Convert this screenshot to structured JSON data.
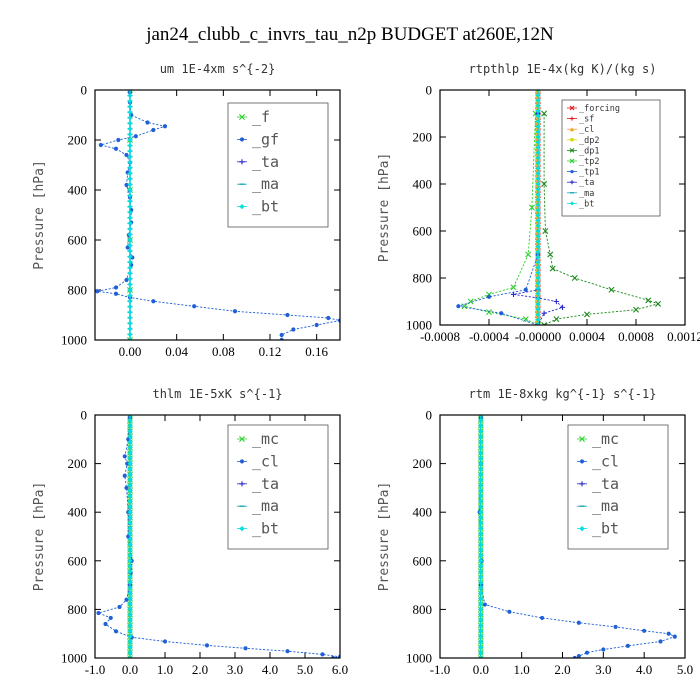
{
  "title": "jan24_clubb_c_invrs_tau_n2p  BUDGET at260E,12N",
  "colors": {
    "green": "#2fcf2f",
    "blue": "#1f5fd8",
    "navy": "#2a2acc",
    "teal": "#1aa6b7",
    "cyan": "#00e0e0",
    "red": "#e01a1a",
    "orange": "#f0a020",
    "yellow": "#d8d800",
    "dkgreen": "#1b8a1b"
  },
  "chart_data": [
    {
      "type": "line",
      "title": "um   1E-4xm s^{-2}",
      "ylabel": "Pressure [hPa]",
      "xlim": [
        -0.03,
        0.18
      ],
      "ylim": [
        0,
        1000
      ],
      "y_inverted": true,
      "xticks": [
        0.0,
        0.04,
        0.08,
        0.12,
        0.16
      ],
      "xtick_labels": [
        "0.00",
        "0.04",
        "0.08",
        "0.12",
        "0.16"
      ],
      "yticks": [
        0,
        200,
        400,
        600,
        800,
        1000
      ],
      "legend_style": "big",
      "series": [
        {
          "name": "_f",
          "color": "green",
          "marker": "x",
          "points": [
            [
              0,
              0
            ],
            [
              0,
              200
            ],
            [
              0,
              400
            ],
            [
              0,
              600
            ],
            [
              0,
              800
            ],
            [
              0,
              1000
            ]
          ]
        },
        {
          "name": "_gf",
          "color": "blue",
          "marker": "dot",
          "points": [
            [
              0,
              10
            ],
            [
              0,
              50
            ],
            [
              0.001,
              100
            ],
            [
              0.015,
              130
            ],
            [
              0.03,
              145
            ],
            [
              0.02,
              160
            ],
            [
              0.005,
              185
            ],
            [
              -0.01,
              200
            ],
            [
              -0.025,
              220
            ],
            [
              -0.012,
              235
            ],
            [
              -0.003,
              260
            ],
            [
              0,
              290
            ],
            [
              -0.002,
              330
            ],
            [
              -0.003,
              380
            ],
            [
              0,
              430
            ],
            [
              0.001,
              480
            ],
            [
              0.001,
              530
            ],
            [
              -0.001,
              580
            ],
            [
              -0.002,
              630
            ],
            [
              0.002,
              670
            ],
            [
              0.001,
              700
            ],
            [
              -0.003,
              760
            ],
            [
              -0.012,
              790
            ],
            [
              -0.028,
              805
            ],
            [
              -0.012,
              815
            ],
            [
              0,
              830
            ],
            [
              0.02,
              845
            ],
            [
              0.055,
              865
            ],
            [
              0.09,
              885
            ],
            [
              0.135,
              900
            ],
            [
              0.17,
              912
            ],
            [
              0.18,
              922
            ],
            [
              0.16,
              940
            ],
            [
              0.14,
              958
            ],
            [
              0.13,
              980
            ],
            [
              0.13,
              1000
            ]
          ]
        },
        {
          "name": "_ta",
          "color": "navy",
          "marker": "plus",
          "points": [
            [
              0,
              0
            ],
            [
              0,
              1000
            ]
          ]
        },
        {
          "name": "_ma",
          "color": "teal",
          "marker": "dash",
          "points": [
            [
              0,
              0
            ],
            [
              0,
              1000
            ]
          ]
        },
        {
          "name": "_bt",
          "color": "cyan",
          "marker": "diamond",
          "points": [
            [
              0,
              0
            ],
            [
              0,
              1000
            ]
          ]
        }
      ]
    },
    {
      "type": "line",
      "title": "rtpthlp   1E-4x(kg K)/(kg s)",
      "ylabel": "Pressure [hPa]",
      "xlim": [
        -0.0008,
        0.0012
      ],
      "ylim": [
        0,
        1000
      ],
      "y_inverted": true,
      "xticks": [
        -0.0008,
        -0.0004,
        0.0,
        0.0004,
        0.0008,
        0.0012
      ],
      "xtick_labels": [
        "-0.0008",
        "-0.0004",
        "-0.00000",
        "0.0004",
        "0.0008",
        "0.0012"
      ],
      "yticks": [
        0,
        200,
        400,
        600,
        800,
        1000
      ],
      "legend_style": "small",
      "series": [
        {
          "name": "_forcing",
          "color": "red",
          "marker": "x",
          "points": [
            [
              0,
              0
            ],
            [
              0,
              1000
            ]
          ]
        },
        {
          "name": "_sf",
          "color": "red",
          "marker": "plus",
          "points": [
            [
              0,
              0
            ],
            [
              0,
              1000
            ]
          ]
        },
        {
          "name": "_cl",
          "color": "orange",
          "marker": "tri",
          "points": [
            [
              0,
              0
            ],
            [
              0,
              1000
            ]
          ]
        },
        {
          "name": "_dp2",
          "color": "yellow",
          "marker": "square",
          "points": [
            [
              0,
              0
            ],
            [
              0,
              1000
            ]
          ]
        },
        {
          "name": "_dp1",
          "color": "dkgreen",
          "marker": "x",
          "points": [
            [
              5e-05,
              100
            ],
            [
              5e-05,
              400
            ],
            [
              6e-05,
              600
            ],
            [
              0.0001,
              700
            ],
            [
              0.00012,
              760
            ],
            [
              0.0003,
              800
            ],
            [
              0.0006,
              850
            ],
            [
              0.0009,
              895
            ],
            [
              0.00098,
              910
            ],
            [
              0.0008,
              935
            ],
            [
              0.0004,
              955
            ],
            [
              0.00015,
              975
            ],
            [
              5e-05,
              1000
            ]
          ]
        },
        {
          "name": "_tp2",
          "color": "green",
          "marker": "x",
          "points": [
            [
              -2e-05,
              100
            ],
            [
              -5e-05,
              500
            ],
            [
              -8e-05,
              700
            ],
            [
              -0.0002,
              840
            ],
            [
              -0.0004,
              870
            ],
            [
              -0.00055,
              900
            ],
            [
              -0.0006,
              920
            ],
            [
              -0.0004,
              945
            ],
            [
              -0.0001,
              975
            ],
            [
              0,
              1000
            ]
          ]
        },
        {
          "name": "_tp1",
          "color": "blue",
          "marker": "dot",
          "points": [
            [
              0,
              100
            ],
            [
              0,
              700
            ],
            [
              -0.0001,
              850
            ],
            [
              -0.0004,
              880
            ],
            [
              -0.00065,
              920
            ],
            [
              -0.0003,
              950
            ],
            [
              0,
              1000
            ]
          ]
        },
        {
          "name": "_ta",
          "color": "navy",
          "marker": "plus",
          "points": [
            [
              0,
              100
            ],
            [
              0,
              850
            ],
            [
              -0.0002,
              870
            ],
            [
              0,
              885
            ],
            [
              0.00015,
              900
            ],
            [
              0.0002,
              925
            ],
            [
              5e-05,
              950
            ],
            [
              0,
              1000
            ]
          ]
        },
        {
          "name": "_ma",
          "color": "teal",
          "marker": "dash",
          "points": [
            [
              0,
              0
            ],
            [
              0,
              1000
            ]
          ]
        },
        {
          "name": "_bt",
          "color": "cyan",
          "marker": "diamond",
          "points": [
            [
              0,
              0
            ],
            [
              0,
              1000
            ]
          ]
        }
      ]
    },
    {
      "type": "line",
      "title": "thlm   1E-5xK s^{-1}",
      "ylabel": "Pressure [hPa]",
      "xlim": [
        -1.0,
        6.0
      ],
      "ylim": [
        0,
        1000
      ],
      "y_inverted": true,
      "xticks": [
        -1.0,
        0.0,
        1.0,
        2.0,
        3.0,
        4.0,
        5.0,
        6.0
      ],
      "xtick_labels": [
        "-1.0",
        "0.0",
        "1.0",
        "2.0",
        "3.0",
        "4.0",
        "5.0",
        "6.0"
      ],
      "yticks": [
        0,
        200,
        400,
        600,
        800,
        1000
      ],
      "legend_style": "big",
      "series": [
        {
          "name": "_mc",
          "color": "green",
          "marker": "x",
          "points": [
            [
              0,
              0
            ],
            [
              0,
              1000
            ]
          ]
        },
        {
          "name": "_cl",
          "color": "blue",
          "marker": "dot",
          "points": [
            [
              0,
              10
            ],
            [
              -0.05,
              100
            ],
            [
              -0.15,
              170
            ],
            [
              -0.08,
              200
            ],
            [
              -0.15,
              250
            ],
            [
              -0.1,
              300
            ],
            [
              -0.05,
              400
            ],
            [
              -0.05,
              500
            ],
            [
              0.05,
              600
            ],
            [
              0.02,
              650
            ],
            [
              0,
              700
            ],
            [
              -0.1,
              760
            ],
            [
              -0.3,
              790
            ],
            [
              -0.9,
              815
            ],
            [
              -0.55,
              835
            ],
            [
              -0.7,
              860
            ],
            [
              -0.4,
              890
            ],
            [
              0.05,
              915
            ],
            [
              1.0,
              932
            ],
            [
              2.2,
              948
            ],
            [
              3.3,
              960
            ],
            [
              4.5,
              972
            ],
            [
              5.5,
              985
            ],
            [
              6.0,
              995
            ],
            [
              5.8,
              1000
            ]
          ]
        },
        {
          "name": "_ta",
          "color": "navy",
          "marker": "plus",
          "points": [
            [
              0,
              0
            ],
            [
              0,
              1000
            ]
          ]
        },
        {
          "name": "_ma",
          "color": "teal",
          "marker": "dash",
          "points": [
            [
              0,
              0
            ],
            [
              0,
              1000
            ]
          ]
        },
        {
          "name": "_bt",
          "color": "cyan",
          "marker": "diamond",
          "points": [
            [
              0,
              0
            ],
            [
              0,
              1000
            ]
          ]
        }
      ]
    },
    {
      "type": "line",
      "title": "rtm   1E-8xkg kg^{-1} s^{-1}",
      "ylabel": "Pressure [hPa]",
      "xlim": [
        -1.0,
        5.0
      ],
      "ylim": [
        0,
        1000
      ],
      "y_inverted": true,
      "xticks": [
        -1.0,
        0.0,
        1.0,
        2.0,
        3.0,
        4.0,
        5.0
      ],
      "xtick_labels": [
        "-1.0",
        "0.0",
        "1.0",
        "2.0",
        "3.0",
        "4.0",
        "5.0"
      ],
      "yticks": [
        0,
        200,
        400,
        600,
        800,
        1000
      ],
      "legend_style": "big",
      "series": [
        {
          "name": "_mc",
          "color": "green",
          "marker": "x",
          "points": [
            [
              0,
              0
            ],
            [
              0,
              1000
            ]
          ]
        },
        {
          "name": "_cl",
          "color": "blue",
          "marker": "dot",
          "points": [
            [
              0,
              10
            ],
            [
              0,
              200
            ],
            [
              -0.03,
              400
            ],
            [
              0.02,
              600
            ],
            [
              0,
              700
            ],
            [
              0.1,
              780
            ],
            [
              0.7,
              810
            ],
            [
              1.5,
              835
            ],
            [
              2.4,
              855
            ],
            [
              3.3,
              872
            ],
            [
              4.0,
              888
            ],
            [
              4.6,
              900
            ],
            [
              4.75,
              912
            ],
            [
              4.4,
              932
            ],
            [
              3.6,
              950
            ],
            [
              3.0,
              965
            ],
            [
              2.6,
              978
            ],
            [
              2.4,
              992
            ],
            [
              2.3,
              1000
            ]
          ]
        },
        {
          "name": "_ta",
          "color": "navy",
          "marker": "plus",
          "points": [
            [
              0,
              0
            ],
            [
              0,
              1000
            ]
          ]
        },
        {
          "name": "_ma",
          "color": "teal",
          "marker": "dash",
          "points": [
            [
              0,
              0
            ],
            [
              0,
              1000
            ]
          ]
        },
        {
          "name": "_bt",
          "color": "cyan",
          "marker": "diamond",
          "points": [
            [
              0,
              0
            ],
            [
              0,
              1000
            ]
          ]
        }
      ]
    }
  ]
}
